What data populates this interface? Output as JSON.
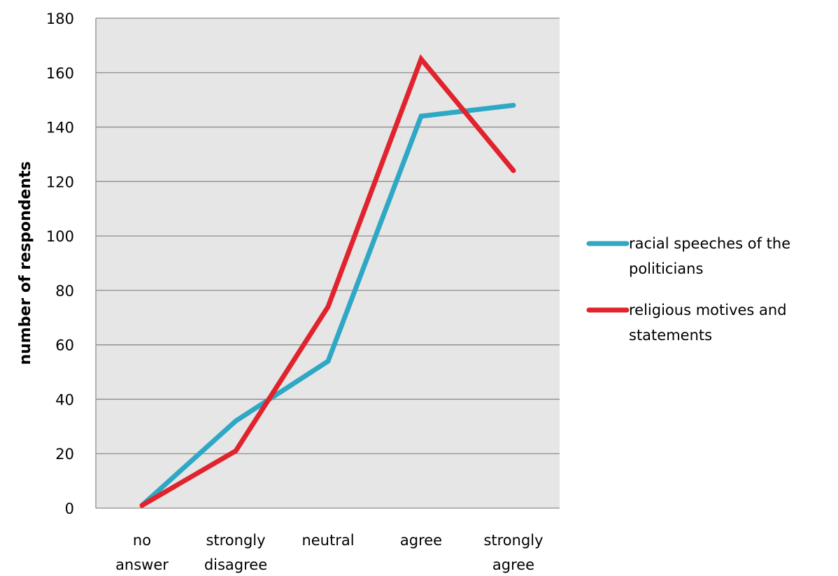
{
  "chart_data": {
    "type": "line",
    "title": "",
    "xlabel": "",
    "ylabel": "number of respondents",
    "ylim": [
      0,
      180
    ],
    "yticks": [
      0,
      20,
      40,
      60,
      80,
      100,
      120,
      140,
      160,
      180
    ],
    "categories": [
      [
        "no",
        "answer"
      ],
      [
        "strongly",
        "disagree"
      ],
      [
        "neutral"
      ],
      [
        "agree"
      ],
      [
        "strongly",
        "agree"
      ]
    ],
    "grid": "horizontal",
    "legend_position": "right",
    "series": [
      {
        "name_lines": [
          "racial speeches of the",
          "politicians"
        ],
        "color": "#2ea8c4",
        "values": [
          1,
          32,
          54,
          144,
          148
        ]
      },
      {
        "name_lines": [
          "religious motives and",
          "statements"
        ],
        "color": "#e0232d",
        "values": [
          1,
          21,
          74,
          165,
          124
        ]
      }
    ]
  }
}
